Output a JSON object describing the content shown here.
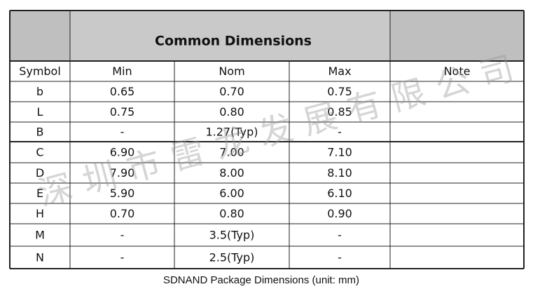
{
  "table": {
    "title": "Common Dimensions",
    "header": [
      "Symbol",
      "Min",
      "Nom",
      "Max",
      "Note"
    ],
    "rows": [
      [
        "b",
        "0.65",
        "0.70",
        "0.75"
      ],
      [
        "L",
        "0.75",
        "0.80",
        "0.85"
      ],
      [
        "B",
        "-",
        "1.27(Typ)",
        "-"
      ],
      [
        "C",
        "6.90",
        "7.00",
        "7.10"
      ],
      [
        "D",
        "7.90",
        "8.00",
        "8.10"
      ],
      [
        "E",
        "5.90",
        "6.00",
        "6.10"
      ],
      [
        "H",
        "0.70",
        "0.80",
        "0.90"
      ],
      [
        "M",
        "-",
        "3.5(Typ)",
        "-"
      ],
      [
        "N",
        "-",
        "2.5(Typ)",
        "-"
      ]
    ]
  },
  "caption": "SDNAND Package Dimensions (unit: mm)",
  "watermark": "深圳市雷龙发展有限公司"
}
